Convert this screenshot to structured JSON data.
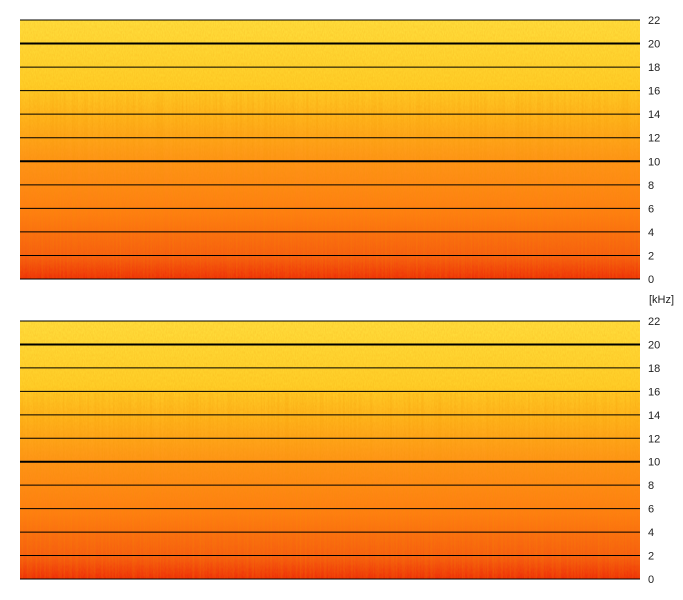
{
  "chart_data": [
    {
      "type": "heatmap",
      "channel": "upper",
      "y_ticks": [
        "0",
        "2",
        "4",
        "6",
        "8",
        "10",
        "12",
        "14",
        "16",
        "18",
        "20",
        "22"
      ],
      "ylim": [
        0,
        22
      ],
      "grid": true,
      "colormap": [
        "#f0300a",
        "#ff8000",
        "#ffcc00",
        "#ffe24a"
      ]
    },
    {
      "type": "heatmap",
      "channel": "lower",
      "y_ticks": [
        "0",
        "2",
        "4",
        "6",
        "8",
        "10",
        "12",
        "14",
        "16",
        "18",
        "20",
        "22"
      ],
      "ylim": [
        0,
        22
      ],
      "grid": true,
      "colormap": [
        "#f0300a",
        "#ff8000",
        "#ffcc00",
        "#ffe24a"
      ]
    }
  ],
  "unit_label": "[kHz]"
}
